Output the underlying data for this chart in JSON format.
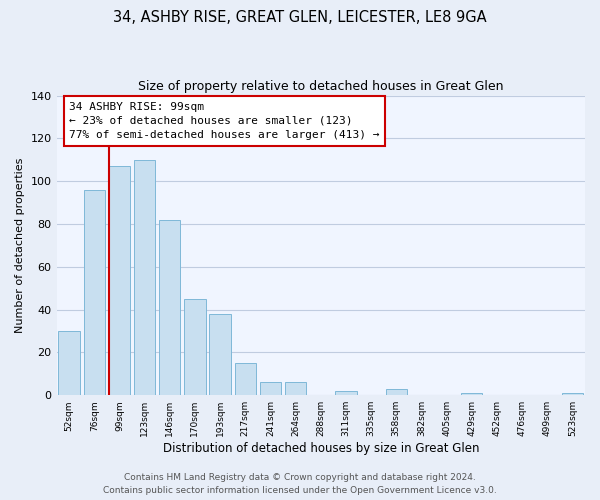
{
  "title": "34, ASHBY RISE, GREAT GLEN, LEICESTER, LE8 9GA",
  "subtitle": "Size of property relative to detached houses in Great Glen",
  "xlabel": "Distribution of detached houses by size in Great Glen",
  "ylabel": "Number of detached properties",
  "bar_labels": [
    "52sqm",
    "76sqm",
    "99sqm",
    "123sqm",
    "146sqm",
    "170sqm",
    "193sqm",
    "217sqm",
    "241sqm",
    "264sqm",
    "288sqm",
    "311sqm",
    "335sqm",
    "358sqm",
    "382sqm",
    "405sqm",
    "429sqm",
    "452sqm",
    "476sqm",
    "499sqm",
    "523sqm"
  ],
  "bar_values": [
    30,
    96,
    107,
    110,
    82,
    45,
    38,
    15,
    6,
    6,
    0,
    2,
    0,
    3,
    0,
    0,
    1,
    0,
    0,
    0,
    1
  ],
  "bar_color": "#c8dff0",
  "bar_edge_color": "#7fb8d8",
  "marker_index": 2,
  "marker_color": "#cc0000",
  "ylim": [
    0,
    140
  ],
  "yticks": [
    0,
    20,
    40,
    60,
    80,
    100,
    120,
    140
  ],
  "annotation_title": "34 ASHBY RISE: 99sqm",
  "annotation_line1": "← 23% of detached houses are smaller (123)",
  "annotation_line2": "77% of semi-detached houses are larger (413) →",
  "footer_line1": "Contains HM Land Registry data © Crown copyright and database right 2024.",
  "footer_line2": "Contains public sector information licensed under the Open Government Licence v3.0.",
  "background_color": "#e8eef8",
  "plot_bg_color": "#f0f5ff",
  "grid_color": "#c0cce0",
  "title_fontsize": 10.5,
  "subtitle_fontsize": 9,
  "xlabel_fontsize": 8.5,
  "ylabel_fontsize": 8,
  "footer_fontsize": 6.5,
  "annotation_fontsize": 8
}
